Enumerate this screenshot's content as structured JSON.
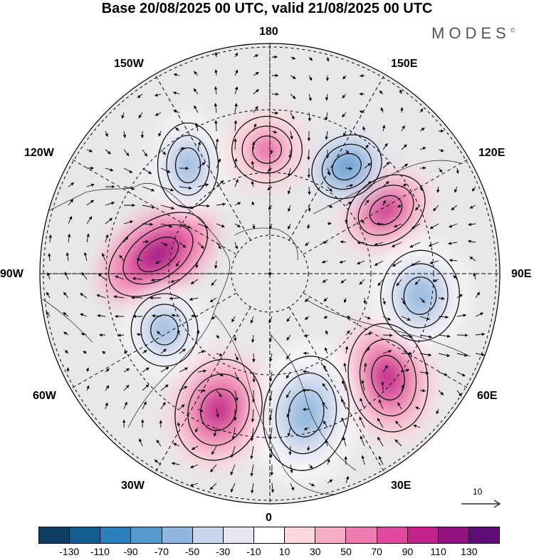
{
  "title": "Base 20/08/2025 00 UTC, valid 21/08/2025 00 UTC",
  "brand": "MODES",
  "brand_mark": "©",
  "longitude_labels": {
    "lon_180": "180",
    "lon_150e": "150E",
    "lon_120e": "120E",
    "lon_90e": "90E",
    "lon_60e": "60E",
    "lon_30e": "30E",
    "lon_0": "0",
    "lon_30w": "30W",
    "lon_60w": "60W",
    "lon_90w": "90W",
    "lon_120w": "120W",
    "lon_150w": "150W"
  },
  "reference_vector": {
    "label": "10"
  },
  "colorbar": {
    "colors": [
      "#0d3f63",
      "#135d91",
      "#2a7fbf",
      "#5499cd",
      "#8fb7dd",
      "#c6d6ec",
      "#e9e6f2",
      "#ffffff",
      "#fbd7de",
      "#f6aec6",
      "#f07bb1",
      "#e34a9f",
      "#c2218c",
      "#951081",
      "#5e0c77"
    ],
    "tick_labels": [
      "-130",
      "-110",
      "-90",
      "-70",
      "-50",
      "-30",
      "-10",
      "10",
      "30",
      "50",
      "70",
      "90",
      "110",
      "130"
    ]
  },
  "anomaly_centers": [
    {
      "sign": "positive",
      "level": 110
    },
    {
      "sign": "positive",
      "level": 90
    },
    {
      "sign": "positive",
      "level": 90
    },
    {
      "sign": "positive",
      "level": 90
    },
    {
      "sign": "positive",
      "level": 70
    },
    {
      "sign": "negative",
      "level": -90
    },
    {
      "sign": "negative",
      "level": -70
    },
    {
      "sign": "negative",
      "level": -70
    },
    {
      "sign": "negative",
      "level": -70
    },
    {
      "sign": "negative",
      "level": -70
    }
  ]
}
